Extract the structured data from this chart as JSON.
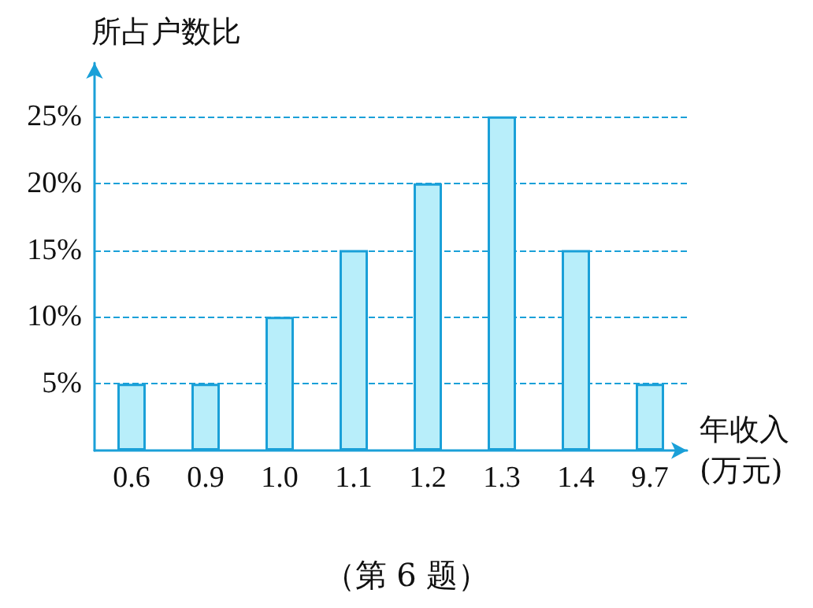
{
  "chart_data": {
    "type": "bar",
    "ylabel": "所占户数比",
    "xlabel": "年收入\n(万元)",
    "annotations": [
      "（第 6 题）"
    ],
    "categories": [
      "0.6",
      "0.9",
      "1.0",
      "1.1",
      "1.2",
      "1.3",
      "1.4",
      "9.7"
    ],
    "values": [
      5,
      5,
      10,
      15,
      20,
      25,
      15,
      5
    ],
    "color": "#b8eefa",
    "ylim": [
      0,
      29
    ],
    "yticks": [
      {
        "value": 5,
        "label": "5%"
      },
      {
        "value": 10,
        "label": "10%"
      },
      {
        "value": 15,
        "label": "15%"
      },
      {
        "value": 20,
        "label": "20%"
      },
      {
        "value": 25,
        "label": "25%"
      }
    ],
    "grid": "y",
    "line_style": "dashed"
  }
}
